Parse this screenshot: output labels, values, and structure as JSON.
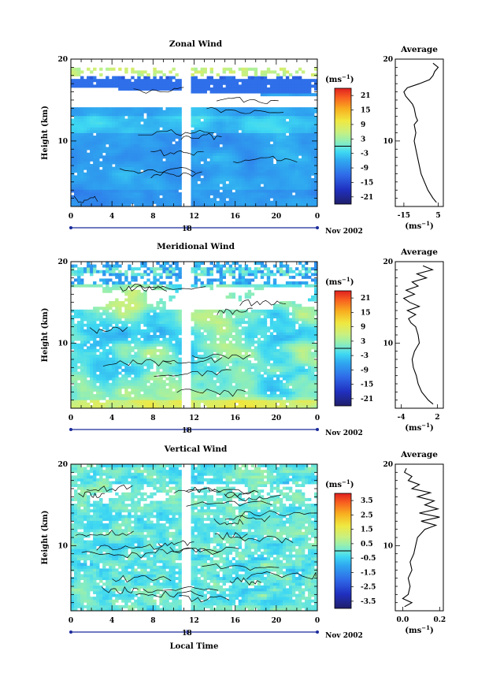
{
  "chart_data": [
    {
      "type": "heatmap",
      "title": "Zonal Wind",
      "ylabel": "Height (km)",
      "y_ticks": [
        "20",
        "10"
      ],
      "ylim": [
        2,
        20
      ],
      "x_ticks": [
        "0",
        "4",
        "8",
        "12",
        "16",
        "20",
        "0"
      ],
      "xlim": [
        0,
        24
      ],
      "date_label": "18",
      "month_label": "Nov 2002",
      "colorbar_unit": "(ms",
      "colorbar_unit_exp": "−1",
      "colorbar_unit_close": ")",
      "colorbar_ticks": [
        "21",
        "15",
        "9",
        "3",
        "-3",
        "-9",
        "-15",
        "-21"
      ],
      "colorbar_range": [
        -24,
        24
      ],
      "colorbar_zero_line": 0,
      "data_gaps_local_time": [
        [
          10.8,
          11.8
        ]
      ],
      "profile": {
        "title": "Average",
        "y_ticks": [
          "20",
          "10"
        ],
        "x_ticks": [
          "-15",
          "5"
        ],
        "xlim": [
          -20,
          8
        ],
        "xlabel": "(ms",
        "xlabel_exp": "−1",
        "xlabel_close": ")",
        "heights_km": [
          2.5,
          3,
          4,
          5,
          6,
          7,
          8,
          9,
          10,
          11,
          12,
          12.5,
          13,
          14,
          14.5,
          15,
          15.5,
          16,
          16.5,
          17,
          17.5,
          18,
          18.5,
          19,
          19.5
        ],
        "values": [
          4,
          2,
          -1,
          -3,
          -5,
          -6,
          -7,
          -8,
          -9,
          -8,
          -9,
          -7,
          -8,
          -9,
          -10,
          -12,
          -14,
          -15,
          -13,
          -6,
          0,
          2,
          3,
          5,
          2
        ]
      }
    },
    {
      "type": "heatmap",
      "title": "Meridional Wind",
      "ylabel": "Height (km)",
      "y_ticks": [
        "20",
        "10"
      ],
      "ylim": [
        2,
        20
      ],
      "x_ticks": [
        "0",
        "4",
        "8",
        "12",
        "16",
        "20",
        "0"
      ],
      "xlim": [
        0,
        24
      ],
      "date_label": "18",
      "month_label": "Nov 2002",
      "colorbar_unit": "(ms",
      "colorbar_unit_exp": "−1",
      "colorbar_unit_close": ")",
      "colorbar_ticks": [
        "21",
        "15",
        "9",
        "3",
        "-3",
        "-9",
        "-15",
        "-21"
      ],
      "colorbar_range": [
        -24,
        24
      ],
      "colorbar_zero_line": 0,
      "data_gaps_local_time": [
        [
          10.8,
          11.8
        ]
      ],
      "profile": {
        "title": "Average",
        "y_ticks": [
          "20",
          "10"
        ],
        "x_ticks": [
          "-4",
          "2"
        ],
        "xlim": [
          -5,
          3
        ],
        "xlabel": "(ms",
        "xlabel_exp": "−1",
        "xlabel_close": ")",
        "heights_km": [
          2.5,
          3,
          4,
          5,
          6,
          7,
          8,
          9,
          10,
          11,
          12,
          12.5,
          13,
          13.5,
          14,
          14.5,
          15,
          15.5,
          16,
          16.5,
          17,
          17.5,
          18,
          18.5,
          19,
          19.5
        ],
        "values": [
          1.3,
          0.5,
          -0.6,
          -1.2,
          -1.5,
          -2.0,
          -2.2,
          -1.8,
          -1.0,
          -1.2,
          -1.6,
          -2.4,
          -2.8,
          -1.6,
          -3.0,
          -1.0,
          -2.6,
          -3.6,
          -1.8,
          -3.2,
          -1.2,
          -2.2,
          0.2,
          -1.4,
          1.2,
          -0.4
        ]
      }
    },
    {
      "type": "heatmap",
      "title": "Vertical Wind",
      "ylabel": "Height (km)",
      "xlabel": "Local Time",
      "y_ticks": [
        "20",
        "10"
      ],
      "ylim": [
        2,
        20
      ],
      "x_ticks": [
        "0",
        "4",
        "8",
        "12",
        "16",
        "20",
        "0"
      ],
      "xlim": [
        0,
        24
      ],
      "date_label": "18",
      "month_label": "Nov 2002",
      "colorbar_unit": "(ms",
      "colorbar_unit_exp": "−1",
      "colorbar_unit_close": ")",
      "colorbar_ticks": [
        "3.5",
        "2.5",
        "1.5",
        "0.5",
        "-0.5",
        "-1.5",
        "-2.5",
        "-3.5"
      ],
      "colorbar_range": [
        -4,
        4
      ],
      "colorbar_zero_line": 0,
      "data_gaps_local_time": [
        [
          10.8,
          11.8
        ]
      ],
      "profile": {
        "title": "Average",
        "y_ticks": [
          "20",
          "10"
        ],
        "x_ticks": [
          "0.0",
          "0.2"
        ],
        "xlim": [
          -0.04,
          0.22
        ],
        "xlabel": "(ms",
        "xlabel_exp": "−1",
        "xlabel_close": ")",
        "heights_km": [
          2.5,
          3,
          3.5,
          4,
          5,
          6,
          7,
          8,
          9,
          10,
          11,
          12,
          12.5,
          13,
          13.5,
          14,
          14.5,
          15,
          15.5,
          16,
          16.5,
          17,
          17.5,
          18,
          18.5,
          19,
          19.5
        ],
        "values": [
          0.01,
          0.05,
          0.0,
          0.03,
          0.04,
          0.03,
          0.05,
          0.04,
          0.06,
          0.07,
          0.08,
          0.12,
          0.18,
          0.1,
          0.2,
          0.09,
          0.19,
          0.12,
          0.17,
          0.08,
          0.15,
          0.05,
          0.09,
          0.03,
          0.05,
          0.01,
          0.02
        ]
      }
    }
  ]
}
